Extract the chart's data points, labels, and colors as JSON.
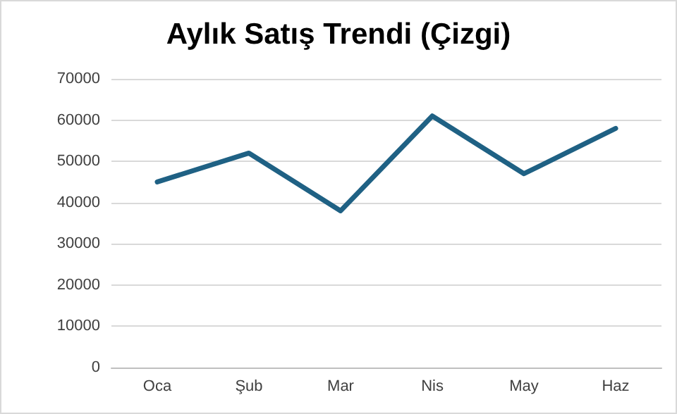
{
  "chart_data": {
    "type": "line",
    "title": "Aylık Satış Trendi (Çizgi)",
    "categories": [
      "Oca",
      "Şub",
      "Mar",
      "Nis",
      "May",
      "Haz"
    ],
    "series": [
      {
        "color": "#1f6184",
        "values": [
          45000,
          52000,
          38000,
          61000,
          47000,
          58000
        ]
      }
    ],
    "ylim": [
      0,
      70000
    ],
    "yticks": [
      0,
      10000,
      20000,
      30000,
      40000,
      50000,
      60000,
      70000
    ],
    "grid": "y",
    "marker": "none",
    "line_style": "solid"
  }
}
